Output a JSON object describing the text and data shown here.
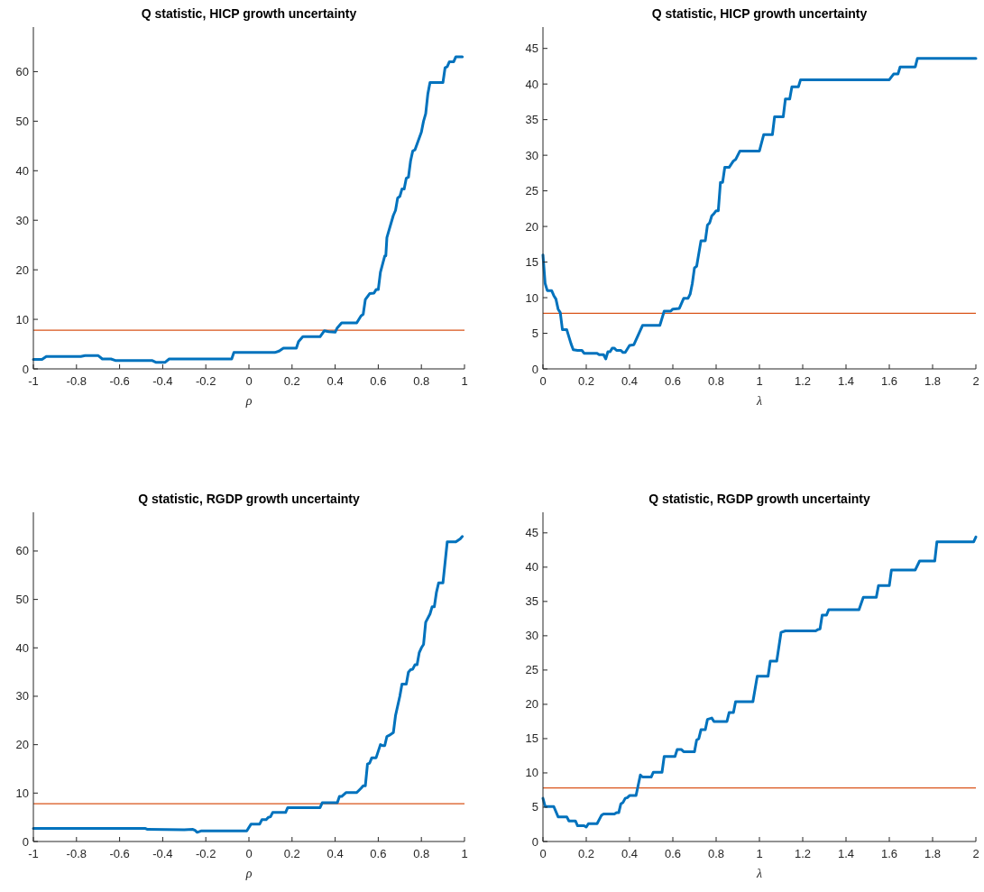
{
  "chart_data": [
    {
      "type": "line",
      "title": "Q statistic, HICP growth uncertainty",
      "xlabel": "ρ",
      "xlim": [
        -1,
        1
      ],
      "ylim": [
        0,
        69
      ],
      "xticks": [
        -1,
        -0.8,
        -0.6,
        -0.4,
        -0.2,
        0,
        0.2,
        0.4,
        0.6,
        0.8,
        1
      ],
      "yticks": [
        0,
        10,
        20,
        30,
        40,
        50,
        60
      ],
      "ref_lines": [
        {
          "axis": "y",
          "value": 7.8,
          "color": "#d95319"
        }
      ],
      "x": [
        -1,
        -0.96,
        -0.94,
        -0.78,
        -0.76,
        -0.7,
        -0.68,
        -0.64,
        -0.62,
        -0.45,
        -0.43,
        -0.39,
        -0.37,
        -0.08,
        -0.07,
        0.12,
        0.14,
        0.16,
        0.22,
        0.23,
        0.25,
        0.33,
        0.35,
        0.37,
        0.4,
        0.41,
        0.43,
        0.5,
        0.52,
        0.53,
        0.54,
        0.56,
        0.58,
        0.59,
        0.6,
        0.61,
        0.63,
        0.635,
        0.64,
        0.65,
        0.67,
        0.68,
        0.69,
        0.7,
        0.71,
        0.72,
        0.73,
        0.74,
        0.75,
        0.76,
        0.77,
        0.8,
        0.81,
        0.82,
        0.83,
        0.84,
        0.9,
        0.91,
        0.92,
        0.93,
        0.95,
        0.96,
        0.99
      ],
      "series": [
        {
          "color": "#0072bd",
          "values": [
            1.9,
            1.9,
            2.5,
            2.5,
            2.7,
            2.7,
            2.0,
            2.0,
            1.7,
            1.7,
            1.3,
            1.3,
            2.0,
            2.0,
            3.3,
            3.3,
            3.6,
            4.2,
            4.2,
            5.5,
            6.5,
            6.5,
            7.7,
            7.5,
            7.4,
            8.3,
            9.3,
            9.3,
            10.7,
            11,
            14,
            15.2,
            15.3,
            16,
            16,
            19.5,
            22.8,
            22.8,
            26.5,
            28,
            31,
            32,
            34.5,
            34.8,
            36.3,
            36.3,
            38.5,
            38.7,
            42,
            44,
            44.2,
            47.8,
            50,
            51.5,
            55.5,
            57.8,
            57.8,
            60.8,
            61,
            62,
            62,
            63,
            63
          ]
        }
      ]
    },
    {
      "type": "line",
      "title": "Q statistic, HICP growth uncertainty",
      "xlabel": "λ",
      "xlim": [
        0,
        2
      ],
      "ylim": [
        0,
        48
      ],
      "xticks": [
        0,
        0.2,
        0.4,
        0.6,
        0.8,
        1,
        1.2,
        1.4,
        1.6,
        1.8,
        2
      ],
      "yticks": [
        0,
        5,
        10,
        15,
        20,
        25,
        30,
        35,
        40,
        45
      ],
      "ref_lines": [
        {
          "axis": "y",
          "value": 7.8,
          "color": "#d95319"
        }
      ],
      "x": [
        0,
        0.01,
        0.02,
        0.04,
        0.05,
        0.06,
        0.07,
        0.08,
        0.09,
        0.11,
        0.13,
        0.14,
        0.16,
        0.18,
        0.19,
        0.21,
        0.25,
        0.26,
        0.28,
        0.29,
        0.3,
        0.31,
        0.32,
        0.33,
        0.34,
        0.36,
        0.37,
        0.38,
        0.4,
        0.42,
        0.46,
        0.54,
        0.56,
        0.59,
        0.6,
        0.63,
        0.65,
        0.67,
        0.68,
        0.69,
        0.7,
        0.71,
        0.73,
        0.75,
        0.76,
        0.77,
        0.78,
        0.79,
        0.8,
        0.81,
        0.82,
        0.83,
        0.84,
        0.86,
        0.88,
        0.89,
        0.91,
        1.0,
        1.02,
        1.06,
        1.07,
        1.11,
        1.12,
        1.14,
        1.15,
        1.18,
        1.19,
        1.6,
        1.62,
        1.64,
        1.65,
        1.72,
        1.73,
        2
      ],
      "series": [
        {
          "color": "#0072bd",
          "values": [
            16,
            12,
            11,
            11,
            10.3,
            9.8,
            8.4,
            7.9,
            5.5,
            5.5,
            3.5,
            2.7,
            2.6,
            2.6,
            2.2,
            2.2,
            2.2,
            2.0,
            2.0,
            1.4,
            2.4,
            2.4,
            2.9,
            2.9,
            2.6,
            2.6,
            2.3,
            2.3,
            3.3,
            3.4,
            6.1,
            6.1,
            8.1,
            8.1,
            8.4,
            8.5,
            9.9,
            9.9,
            10.5,
            12,
            14.2,
            14.4,
            18,
            18,
            20.2,
            20.5,
            21.5,
            21.8,
            22.2,
            22.2,
            26.2,
            26.2,
            28.3,
            28.3,
            29.2,
            29.4,
            30.6,
            30.6,
            32.9,
            32.9,
            35.4,
            35.4,
            37.9,
            37.9,
            39.6,
            39.6,
            40.6,
            40.6,
            41.4,
            41.4,
            42.4,
            42.4,
            43.6,
            43.6
          ]
        }
      ]
    },
    {
      "type": "line",
      "title": "Q statistic, RGDP growth uncertainty",
      "xlabel": "ρ",
      "xlim": [
        -1,
        1
      ],
      "ylim": [
        0,
        68
      ],
      "xticks": [
        -1,
        -0.8,
        -0.6,
        -0.4,
        -0.2,
        0,
        0.2,
        0.4,
        0.6,
        0.8,
        1
      ],
      "yticks": [
        0,
        10,
        20,
        30,
        40,
        50,
        60
      ],
      "ref_lines": [
        {
          "axis": "y",
          "value": 7.8,
          "color": "#d95319"
        }
      ],
      "x": [
        -1,
        -0.48,
        -0.47,
        -0.3,
        -0.26,
        -0.25,
        -0.24,
        -0.22,
        -0.01,
        0.01,
        0.05,
        0.06,
        0.08,
        0.09,
        0.1,
        0.11,
        0.17,
        0.18,
        0.33,
        0.34,
        0.41,
        0.42,
        0.43,
        0.45,
        0.5,
        0.52,
        0.53,
        0.54,
        0.55,
        0.56,
        0.57,
        0.59,
        0.61,
        0.62,
        0.63,
        0.64,
        0.65,
        0.67,
        0.68,
        0.7,
        0.71,
        0.73,
        0.74,
        0.75,
        0.76,
        0.77,
        0.78,
        0.79,
        0.8,
        0.81,
        0.82,
        0.84,
        0.85,
        0.86,
        0.87,
        0.88,
        0.9,
        0.92,
        0.96,
        0.98,
        0.99
      ],
      "series": [
        {
          "color": "#0072bd",
          "values": [
            2.7,
            2.7,
            2.5,
            2.4,
            2.5,
            2.3,
            1.9,
            2.2,
            2.2,
            3.6,
            3.6,
            4.5,
            4.5,
            5.0,
            5.1,
            6.0,
            6.0,
            7.0,
            7.0,
            8.0,
            8.0,
            9.3,
            9.3,
            10.1,
            10.1,
            11,
            11.5,
            11.5,
            16,
            16.2,
            17.3,
            17.3,
            20,
            19.8,
            19.8,
            21.7,
            21.9,
            22.5,
            26,
            30,
            32.5,
            32.5,
            35,
            35.5,
            35.6,
            36.5,
            36.5,
            39,
            40,
            40.7,
            45.3,
            47,
            48.5,
            48.5,
            51.5,
            53.4,
            53.4,
            61.9,
            61.9,
            62.5,
            63
          ]
        }
      ]
    },
    {
      "type": "line",
      "title": "Q statistic, RGDP growth uncertainty",
      "xlabel": "λ",
      "xlim": [
        0,
        2
      ],
      "ylim": [
        0,
        48
      ],
      "xticks": [
        0,
        0.2,
        0.4,
        0.6,
        0.8,
        1,
        1.2,
        1.4,
        1.6,
        1.8,
        2
      ],
      "yticks": [
        0,
        5,
        10,
        15,
        20,
        25,
        30,
        35,
        40,
        45
      ],
      "ref_lines": [
        {
          "axis": "y",
          "value": 7.8,
          "color": "#d95319"
        }
      ],
      "x": [
        0,
        0.01,
        0.05,
        0.07,
        0.11,
        0.12,
        0.15,
        0.16,
        0.19,
        0.2,
        0.21,
        0.25,
        0.27,
        0.28,
        0.33,
        0.34,
        0.35,
        0.36,
        0.37,
        0.38,
        0.39,
        0.4,
        0.43,
        0.45,
        0.46,
        0.5,
        0.51,
        0.55,
        0.56,
        0.61,
        0.62,
        0.64,
        0.65,
        0.7,
        0.71,
        0.72,
        0.73,
        0.75,
        0.76,
        0.78,
        0.79,
        0.85,
        0.86,
        0.88,
        0.89,
        0.97,
        0.99,
        1.04,
        1.05,
        1.08,
        1.1,
        1.12,
        1.26,
        1.27,
        1.28,
        1.29,
        1.31,
        1.32,
        1.46,
        1.48,
        1.54,
        1.55,
        1.6,
        1.61,
        1.72,
        1.74,
        1.81,
        1.82,
        1.99,
        2
      ],
      "series": [
        {
          "color": "#0072bd",
          "values": [
            6.3,
            5.1,
            5.1,
            3.6,
            3.6,
            3.0,
            3.0,
            2.3,
            2.3,
            2.1,
            2.6,
            2.6,
            3.8,
            4.0,
            4.0,
            4.2,
            4.2,
            5.5,
            5.7,
            6.3,
            6.4,
            6.7,
            6.7,
            9.7,
            9.4,
            9.4,
            10.1,
            10.1,
            12.4,
            12.4,
            13.4,
            13.4,
            13.1,
            13.1,
            14.8,
            15.0,
            16.3,
            16.3,
            17.8,
            18.0,
            17.5,
            17.5,
            18.8,
            18.8,
            20.4,
            20.4,
            24.1,
            24.1,
            26.3,
            26.3,
            30.5,
            30.7,
            30.7,
            30.9,
            31,
            33,
            33,
            33.8,
            33.8,
            35.6,
            35.6,
            37.3,
            37.3,
            39.6,
            39.6,
            40.9,
            40.9,
            43.7,
            43.7,
            44.4
          ]
        }
      ]
    }
  ]
}
